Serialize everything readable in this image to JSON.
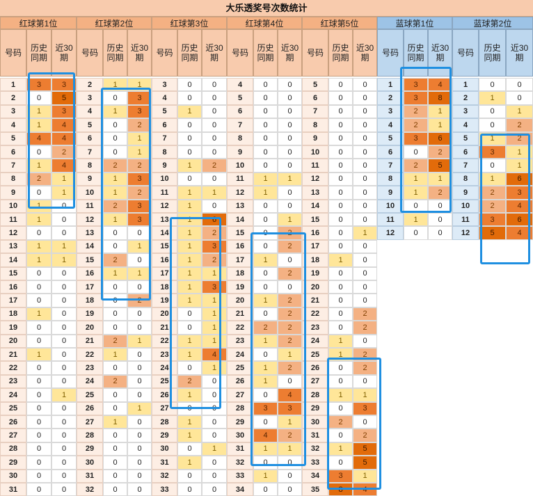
{
  "title": "大乐透奖号次数统计",
  "subheaders": [
    "号码",
    "历史同期",
    "近30期"
  ],
  "groups": [
    {
      "name": "红球第1位",
      "kind": "red",
      "rows": [
        [
          1,
          3,
          3
        ],
        [
          2,
          0,
          5
        ],
        [
          3,
          1,
          3
        ],
        [
          4,
          1,
          4
        ],
        [
          5,
          4,
          4
        ],
        [
          6,
          0,
          2
        ],
        [
          7,
          1,
          4
        ],
        [
          8,
          2,
          1
        ],
        [
          9,
          0,
          1
        ],
        [
          10,
          1,
          0
        ],
        [
          11,
          1,
          0
        ],
        [
          12,
          0,
          0
        ],
        [
          13,
          1,
          1
        ],
        [
          14,
          1,
          1
        ],
        [
          15,
          0,
          0
        ],
        [
          16,
          0,
          0
        ],
        [
          17,
          0,
          0
        ],
        [
          18,
          1,
          0
        ],
        [
          19,
          0,
          0
        ],
        [
          20,
          0,
          0
        ],
        [
          21,
          1,
          0
        ],
        [
          22,
          0,
          0
        ],
        [
          23,
          0,
          0
        ],
        [
          24,
          0,
          1
        ],
        [
          25,
          0,
          0
        ],
        [
          26,
          0,
          0
        ],
        [
          27,
          0,
          0
        ],
        [
          28,
          0,
          0
        ],
        [
          29,
          0,
          0
        ],
        [
          30,
          0,
          0
        ],
        [
          31,
          0,
          0
        ]
      ]
    },
    {
      "name": "红球第2位",
      "kind": "red",
      "rows": [
        [
          2,
          1,
          1
        ],
        [
          3,
          0,
          3
        ],
        [
          4,
          1,
          3
        ],
        [
          5,
          0,
          2
        ],
        [
          6,
          0,
          1
        ],
        [
          7,
          0,
          1
        ],
        [
          8,
          2,
          2
        ],
        [
          9,
          1,
          3
        ],
        [
          10,
          1,
          2
        ],
        [
          11,
          2,
          3
        ],
        [
          12,
          1,
          3
        ],
        [
          13,
          0,
          0
        ],
        [
          14,
          0,
          1
        ],
        [
          15,
          2,
          0
        ],
        [
          16,
          1,
          1
        ],
        [
          17,
          0,
          0
        ],
        [
          18,
          0,
          2
        ],
        [
          19,
          0,
          0
        ],
        [
          20,
          0,
          0
        ],
        [
          21,
          2,
          1
        ],
        [
          22,
          1,
          0
        ],
        [
          23,
          0,
          0
        ],
        [
          24,
          2,
          0
        ],
        [
          25,
          0,
          0
        ],
        [
          26,
          0,
          1
        ],
        [
          27,
          1,
          0
        ],
        [
          28,
          0,
          0
        ],
        [
          29,
          0,
          0
        ],
        [
          30,
          0,
          0
        ],
        [
          31,
          0,
          0
        ],
        [
          32,
          0,
          0
        ]
      ]
    },
    {
      "name": "红球第3位",
      "kind": "red",
      "rows": [
        [
          3,
          0,
          0
        ],
        [
          4,
          0,
          0
        ],
        [
          5,
          1,
          0
        ],
        [
          6,
          0,
          0
        ],
        [
          7,
          0,
          0
        ],
        [
          8,
          0,
          0
        ],
        [
          9,
          1,
          2
        ],
        [
          10,
          0,
          0
        ],
        [
          11,
          1,
          1
        ],
        [
          12,
          1,
          0
        ],
        [
          13,
          1,
          6
        ],
        [
          14,
          1,
          2
        ],
        [
          15,
          1,
          3
        ],
        [
          16,
          1,
          2
        ],
        [
          17,
          1,
          1
        ],
        [
          18,
          1,
          3
        ],
        [
          19,
          1,
          1
        ],
        [
          20,
          0,
          1
        ],
        [
          21,
          0,
          1
        ],
        [
          22,
          1,
          1
        ],
        [
          23,
          1,
          4
        ],
        [
          24,
          0,
          1
        ],
        [
          25,
          2,
          0
        ],
        [
          26,
          1,
          0
        ],
        [
          27,
          0,
          0
        ],
        [
          28,
          1,
          0
        ],
        [
          29,
          1,
          0
        ],
        [
          30,
          0,
          1
        ],
        [
          31,
          1,
          0
        ],
        [
          32,
          0,
          0
        ],
        [
          33,
          0,
          0
        ]
      ]
    },
    {
      "name": "红球第4位",
      "kind": "red",
      "rows": [
        [
          4,
          0,
          0
        ],
        [
          5,
          0,
          0
        ],
        [
          6,
          0,
          0
        ],
        [
          7,
          0,
          0
        ],
        [
          8,
          0,
          0
        ],
        [
          9,
          0,
          0
        ],
        [
          10,
          0,
          0
        ],
        [
          11,
          1,
          1
        ],
        [
          12,
          1,
          0
        ],
        [
          13,
          0,
          0
        ],
        [
          14,
          0,
          1
        ],
        [
          15,
          0,
          2
        ],
        [
          16,
          0,
          2
        ],
        [
          17,
          1,
          0
        ],
        [
          18,
          0,
          2
        ],
        [
          19,
          0,
          0
        ],
        [
          20,
          1,
          2
        ],
        [
          21,
          0,
          2
        ],
        [
          22,
          2,
          2
        ],
        [
          23,
          1,
          2
        ],
        [
          24,
          0,
          1
        ],
        [
          25,
          1,
          2
        ],
        [
          26,
          1,
          0
        ],
        [
          27,
          0,
          4
        ],
        [
          28,
          3,
          3
        ],
        [
          29,
          0,
          1
        ],
        [
          30,
          4,
          2
        ],
        [
          31,
          1,
          1
        ],
        [
          32,
          0,
          0
        ],
        [
          33,
          1,
          0
        ],
        [
          34,
          0,
          0
        ]
      ]
    },
    {
      "name": "红球第5位",
      "kind": "red",
      "rows": [
        [
          5,
          0,
          0
        ],
        [
          6,
          0,
          0
        ],
        [
          7,
          0,
          0
        ],
        [
          8,
          0,
          0
        ],
        [
          9,
          0,
          0
        ],
        [
          10,
          0,
          0
        ],
        [
          11,
          0,
          0
        ],
        [
          12,
          0,
          0
        ],
        [
          13,
          0,
          0
        ],
        [
          14,
          0,
          0
        ],
        [
          15,
          0,
          0
        ],
        [
          16,
          0,
          1
        ],
        [
          17,
          0,
          0
        ],
        [
          18,
          1,
          0
        ],
        [
          19,
          0,
          0
        ],
        [
          20,
          0,
          0
        ],
        [
          21,
          0,
          0
        ],
        [
          22,
          0,
          2
        ],
        [
          23,
          0,
          2
        ],
        [
          24,
          1,
          0
        ],
        [
          25,
          1,
          2
        ],
        [
          26,
          0,
          2
        ],
        [
          27,
          0,
          0
        ],
        [
          28,
          1,
          1
        ],
        [
          29,
          0,
          3
        ],
        [
          30,
          2,
          0
        ],
        [
          31,
          0,
          2
        ],
        [
          32,
          1,
          5
        ],
        [
          33,
          0,
          5
        ],
        [
          34,
          3,
          1
        ],
        [
          35,
          8,
          4
        ]
      ]
    },
    {
      "name": "蓝球第1位",
      "kind": "blue",
      "rows": [
        [
          1,
          3,
          4
        ],
        [
          2,
          3,
          8
        ],
        [
          3,
          2,
          1
        ],
        [
          4,
          2,
          1
        ],
        [
          5,
          3,
          6
        ],
        [
          6,
          0,
          2
        ],
        [
          7,
          2,
          5
        ],
        [
          8,
          1,
          1
        ],
        [
          9,
          1,
          2
        ],
        [
          10,
          0,
          0
        ],
        [
          11,
          1,
          0
        ],
        [
          12,
          0,
          0
        ]
      ]
    },
    {
      "name": "蓝球第2位",
      "kind": "blue",
      "rows": [
        [
          1,
          0,
          0
        ],
        [
          2,
          1,
          0
        ],
        [
          3,
          0,
          1
        ],
        [
          4,
          0,
          2
        ],
        [
          5,
          1,
          2
        ],
        [
          6,
          3,
          1
        ],
        [
          7,
          0,
          1
        ],
        [
          8,
          1,
          6
        ],
        [
          9,
          2,
          3
        ],
        [
          10,
          2,
          4
        ],
        [
          11,
          3,
          6
        ],
        [
          12,
          5,
          4
        ]
      ]
    }
  ],
  "highlight_color": "#1e8fe1",
  "level_colors": {
    "1": "#ffe699",
    "2": "#f4b183",
    "3": "#ed7d31",
    "4": "#e26b0a"
  }
}
